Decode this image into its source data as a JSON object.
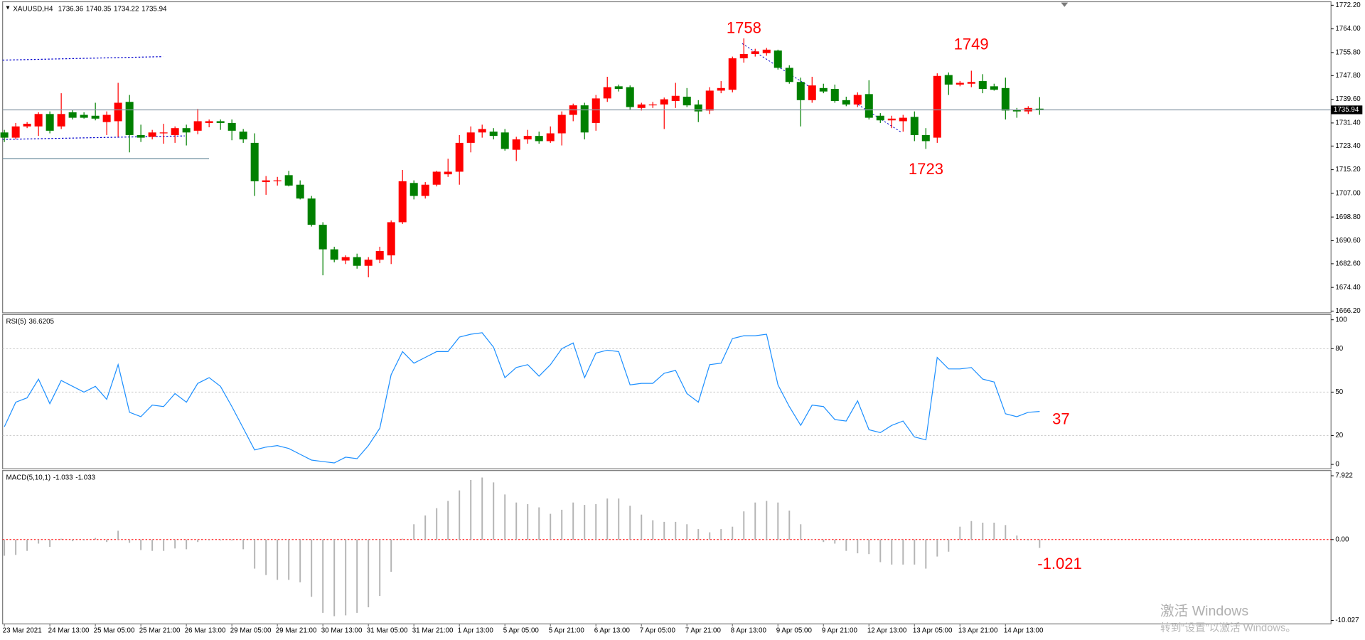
{
  "chart_data": [
    {
      "type": "candlestick",
      "title": "XAUUSD,H4",
      "categories": [
        "23 Mar 2021",
        null,
        null,
        null,
        "24 Mar 13:00",
        null,
        null,
        null,
        "25 Mar 05:00",
        null,
        null,
        null,
        "25 Mar 21:00",
        null,
        null,
        null,
        "26 Mar 13:00",
        null,
        null,
        null,
        "29 Mar 05:00",
        null,
        null,
        null,
        "29 Mar 21:00",
        null,
        null,
        null,
        "30 Mar 13:00",
        null,
        null,
        null,
        "31 Mar 05:00",
        null,
        null,
        null,
        "31 Mar 21:00",
        null,
        null,
        null,
        "1 Apr 13:00",
        null,
        null,
        null,
        "5 Apr 05:00",
        null,
        null,
        null,
        "5 Apr 21:00",
        null,
        null,
        null,
        "6 Apr 13:00",
        null,
        null,
        null,
        "7 Apr 05:00",
        null,
        null,
        null,
        "7 Apr 21:00",
        null,
        null,
        null,
        "8 Apr 13:00",
        null,
        null,
        null,
        "9 Apr 05:00",
        null,
        null,
        null,
        "9 Apr 21:00",
        null,
        null,
        null,
        "12 Apr 13:00",
        null,
        null,
        null,
        "13 Apr 05:00",
        null,
        null,
        null,
        "13 Apr 21:00",
        null,
        null,
        null,
        "14 Apr 13:00",
        null,
        null,
        null
      ],
      "open": [
        1728.1,
        1726.3,
        1730.2,
        1730.2,
        1734.5,
        1730.2,
        1735.1,
        1734.2,
        1733.9,
        1731.7,
        1732.0,
        1738.7,
        1727.2,
        1726.6,
        1727.8,
        1727.2,
        1729.6,
        1728.7,
        1731.4,
        1732.0,
        1731.4,
        1728.4,
        1724.5,
        1710.9,
        1711.2,
        1713.3,
        1710.0,
        1705.2,
        1696.1,
        1687.6,
        1683.7,
        1684.9,
        1681.9,
        1684.0,
        1685.5,
        1697.0,
        1710.6,
        1706.1,
        1710.0,
        1713.6,
        1714.5,
        1724.5,
        1728.1,
        1728.4,
        1728.1,
        1722.1,
        1725.7,
        1726.9,
        1725.1,
        1727.8,
        1734.2,
        1737.5,
        1731.4,
        1739.9,
        1744.1,
        1743.8,
        1736.6,
        1737.5,
        1737.8,
        1739.0,
        1740.5,
        1737.8,
        1735.7,
        1742.6,
        1742.9,
        1753.8,
        1755.3,
        1755.6,
        1756.5,
        1750.5,
        1745.6,
        1739.3,
        1743.5,
        1743.2,
        1739.3,
        1737.8,
        1741.4,
        1733.9,
        1732.3,
        1732.0,
        1733.5,
        1727.2,
        1726.3,
        1748.0,
        1744.7,
        1745.0,
        1745.9,
        1744.1,
        1743.5,
        1736.0,
        1735.4,
        1736.36
      ],
      "high": [
        1729.0,
        1731.4,
        1731.7,
        1735.1,
        1735.4,
        1741.7,
        1736.0,
        1735.1,
        1738.4,
        1735.4,
        1745.3,
        1741.1,
        1730.8,
        1729.0,
        1731.1,
        1730.2,
        1730.8,
        1736.3,
        1732.6,
        1732.6,
        1732.6,
        1729.3,
        1727.8,
        1713.0,
        1712.7,
        1714.8,
        1711.5,
        1706.1,
        1697.0,
        1688.5,
        1685.5,
        1686.1,
        1684.9,
        1688.5,
        1697.6,
        1715.1,
        1711.5,
        1710.9,
        1714.8,
        1719.0,
        1727.2,
        1730.2,
        1730.8,
        1729.6,
        1729.3,
        1726.6,
        1729.0,
        1728.4,
        1730.2,
        1735.4,
        1738.1,
        1738.4,
        1741.1,
        1747.4,
        1744.7,
        1744.4,
        1738.4,
        1738.7,
        1740.2,
        1745.3,
        1743.5,
        1739.3,
        1743.8,
        1745.9,
        1754.4,
        1760.7,
        1757.1,
        1757.4,
        1756.8,
        1751.4,
        1747.1,
        1747.4,
        1745.0,
        1744.7,
        1740.5,
        1742.0,
        1746.2,
        1734.8,
        1733.9,
        1734.2,
        1735.4,
        1729.6,
        1748.6,
        1748.9,
        1745.9,
        1749.5,
        1748.3,
        1745.0,
        1747.1,
        1736.6,
        1737.2,
        1740.35
      ],
      "low": [
        1724.8,
        1725.7,
        1729.6,
        1726.9,
        1727.8,
        1729.3,
        1732.6,
        1732.9,
        1732.3,
        1727.2,
        1726.6,
        1721.2,
        1724.8,
        1725.7,
        1724.2,
        1724.5,
        1723.6,
        1727.5,
        1729.9,
        1729.0,
        1725.4,
        1724.5,
        1706.1,
        1706.5,
        1709.7,
        1709.4,
        1704.9,
        1695.5,
        1678.6,
        1683.1,
        1682.5,
        1680.9,
        1677.9,
        1682.8,
        1682.5,
        1696.4,
        1704.9,
        1705.2,
        1709.4,
        1712.7,
        1710.0,
        1721.2,
        1726.3,
        1725.7,
        1721.8,
        1718.2,
        1724.2,
        1724.2,
        1724.5,
        1723.6,
        1732.0,
        1725.7,
        1728.7,
        1738.7,
        1742.3,
        1736.0,
        1735.7,
        1736.6,
        1729.3,
        1736.6,
        1736.9,
        1731.7,
        1734.5,
        1741.7,
        1742.0,
        1752.3,
        1754.4,
        1754.7,
        1749.9,
        1745.0,
        1730.2,
        1738.4,
        1741.7,
        1738.4,
        1737.2,
        1736.9,
        1732.6,
        1731.4,
        1729.6,
        1728.4,
        1725.1,
        1722.4,
        1724.5,
        1741.1,
        1744.1,
        1743.8,
        1741.7,
        1742.6,
        1732.6,
        1733.2,
        1734.5,
        1734.22
      ],
      "close": [
        1726.3,
        1730.2,
        1731.1,
        1734.5,
        1728.7,
        1734.5,
        1733.2,
        1733.2,
        1732.9,
        1734.2,
        1738.4,
        1727.2,
        1726.3,
        1728.1,
        1728.1,
        1729.6,
        1728.1,
        1732.0,
        1732.0,
        1731.4,
        1728.7,
        1725.7,
        1711.2,
        1711.5,
        1711.5,
        1709.7,
        1705.2,
        1696.1,
        1687.6,
        1684.0,
        1684.9,
        1681.9,
        1684.0,
        1687.0,
        1697.0,
        1711.2,
        1706.1,
        1710.0,
        1714.5,
        1714.5,
        1724.5,
        1728.1,
        1729.3,
        1726.9,
        1722.4,
        1725.7,
        1726.9,
        1725.1,
        1727.8,
        1734.2,
        1737.5,
        1728.1,
        1739.9,
        1743.8,
        1743.2,
        1736.9,
        1737.8,
        1737.8,
        1739.6,
        1740.8,
        1737.5,
        1735.4,
        1742.6,
        1743.5,
        1753.8,
        1755.3,
        1756.2,
        1756.8,
        1750.5,
        1745.6,
        1739.3,
        1744.4,
        1742.3,
        1739.0,
        1737.8,
        1741.1,
        1733.2,
        1732.3,
        1732.9,
        1733.2,
        1727.2,
        1725.1,
        1747.7,
        1744.7,
        1745.3,
        1745.6,
        1743.2,
        1742.9,
        1735.7,
        1735.4,
        1736.6,
        1735.94
      ],
      "up_color": "#ff0000",
      "down_color": "#008000",
      "grid": false,
      "ylim": [
        1666.2,
        1772.2
      ],
      "yticks": [
        {
          "value": 1772.2,
          "label": "1772.20"
        },
        {
          "value": 1764,
          "label": "1764.00"
        },
        {
          "value": 1755.8,
          "label": "1755.80"
        },
        {
          "value": 1747.8,
          "label": "1747.80"
        },
        {
          "value": 1739.6,
          "label": "1739.60"
        },
        {
          "value": 1731.4,
          "label": "1731.40"
        },
        {
          "value": 1723.4,
          "label": "1723.40"
        },
        {
          "value": 1715.2,
          "label": "1715.20"
        },
        {
          "value": 1707,
          "label": "1707.00"
        },
        {
          "value": 1698.8,
          "label": "1698.80"
        },
        {
          "value": 1690.6,
          "label": "1690.60"
        },
        {
          "value": 1682.6,
          "label": "1682.60"
        },
        {
          "value": 1674.4,
          "label": "1674.40"
        },
        {
          "value": 1666.2,
          "label": "1666.20"
        }
      ],
      "annotations": [
        "1758",
        "1749",
        "1723"
      ]
    },
    {
      "type": "line",
      "title": "RSI(5)",
      "values": [
        26,
        43,
        46,
        59,
        42,
        58,
        54,
        50,
        54,
        45,
        69,
        36,
        33,
        41,
        40,
        49,
        43,
        56,
        60,
        54,
        40,
        25,
        10,
        12,
        13,
        11,
        7,
        3,
        2,
        1,
        5,
        4,
        13,
        25,
        62,
        78,
        70,
        74,
        78,
        78,
        88,
        90,
        91,
        81,
        60,
        67,
        69,
        61,
        69,
        80,
        84,
        60,
        77,
        79,
        78,
        55,
        56,
        56,
        63,
        65,
        49,
        43,
        69,
        70,
        87,
        89,
        89,
        90,
        55,
        40,
        27,
        41,
        40,
        31,
        30,
        44,
        24,
        22,
        27,
        30,
        19,
        17,
        74,
        66,
        66,
        67,
        59,
        57,
        35,
        33,
        36,
        36.6205
      ],
      "color": "#1e90ff",
      "grid": true,
      "grid_color": "#c8c8c8",
      "ylim": [
        0,
        100
      ],
      "yticks": [
        100,
        80,
        50,
        20,
        0
      ],
      "annotations": [
        "37"
      ]
    },
    {
      "type": "bar",
      "title": "MACD(5,10,1)",
      "values": [
        -2.0,
        -1.9,
        -1.4,
        -0.5,
        -0.9,
        0.1,
        -0.2,
        -0.1,
        0.2,
        -0.3,
        1.1,
        -0.4,
        -1.3,
        -1.4,
        -1.4,
        -1.1,
        -1.2,
        -0.3,
        -0.1,
        -0.1,
        -0.1,
        -1.2,
        -3.6,
        -4.4,
        -5.0,
        -5.0,
        -5.3,
        -7.1,
        -9.1,
        -9.5,
        -9.4,
        -9.1,
        -8.4,
        -7.0,
        -4.0,
        0.1,
        1.9,
        3.0,
        3.9,
        4.8,
        6.1,
        7.4,
        7.7,
        7.1,
        5.6,
        4.6,
        4.4,
        4.0,
        3.2,
        3.7,
        4.6,
        4.3,
        4.4,
        5.1,
        5.1,
        4.2,
        3.1,
        2.4,
        2.2,
        2.2,
        1.9,
        1.3,
        0.9,
        1.3,
        1.6,
        3.5,
        4.6,
        4.8,
        4.6,
        3.6,
        1.9,
        0.05,
        -0.3,
        -0.5,
        -1.4,
        -1.7,
        -1.8,
        -2.8,
        -3.1,
        -3.1,
        -3.1,
        -3.6,
        -2.1,
        -1.5,
        1.6,
        2.3,
        2.1,
        2.1,
        1.8,
        0.5,
        -0.1,
        -1.033
      ],
      "color": "#b4b4b4",
      "grid": true,
      "grid_color": "#ff0000",
      "ylim": [
        -10.027,
        7.922
      ],
      "yticks": [
        7.922,
        {
          "value": 0,
          "label": "0.00"
        },
        -10.027
      ],
      "annotations": [
        "-1.021"
      ]
    }
  ],
  "watermark": {
    "line1": "激活 Windows",
    "line2": "转到“设置”以激活 Windows。"
  }
}
